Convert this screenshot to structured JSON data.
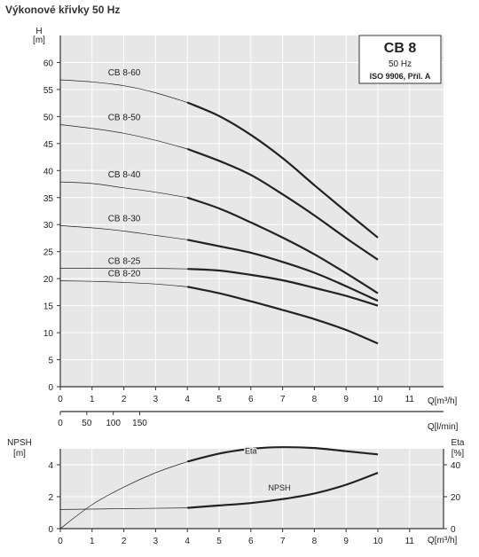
{
  "page_title": "Výkonové křivky 50 Hz",
  "colors": {
    "background": "#ffffff",
    "panel": "#e7e7e7",
    "grid": "#ffffff",
    "curve": "#222222",
    "axis": "#333333",
    "legend_box": "#ffffff"
  },
  "legend_box": {
    "title": "CB 8",
    "line2": "50 Hz",
    "line3": "ISO 9906, Příl. A"
  },
  "chart_data": [
    {
      "type": "line",
      "ylabel": "H",
      "yunit": "[m]",
      "xlabel": "Q[m³/h]",
      "xlim": [
        0,
        12
      ],
      "ylim": [
        0,
        65
      ],
      "xticks": [
        0,
        1,
        2,
        3,
        4,
        5,
        6,
        7,
        8,
        9,
        10,
        11
      ],
      "yticks": [
        0,
        5,
        10,
        15,
        20,
        25,
        30,
        35,
        40,
        45,
        50,
        55,
        60
      ],
      "secondary_x": {
        "label": "Q[l/min]",
        "ticks": [
          0,
          50,
          100,
          150
        ],
        "factor": 60
      },
      "series": [
        {
          "name": "CB 8-60",
          "thin": [
            [
              0,
              56.8
            ],
            [
              1,
              56.4
            ],
            [
              2,
              55.7
            ],
            [
              3,
              54.4
            ],
            [
              4,
              52.6
            ]
          ],
          "thick": [
            [
              4,
              52.6
            ],
            [
              5,
              50.1
            ],
            [
              6,
              46.6
            ],
            [
              7,
              42.3
            ],
            [
              8,
              37.3
            ],
            [
              9,
              32.4
            ],
            [
              10,
              27.6
            ]
          ]
        },
        {
          "name": "CB 8-50",
          "thin": [
            [
              0,
              48.5
            ],
            [
              1,
              47.8
            ],
            [
              2,
              46.9
            ],
            [
              3,
              45.6
            ],
            [
              4,
              44.0
            ]
          ],
          "thick": [
            [
              4,
              44.0
            ],
            [
              5,
              41.8
            ],
            [
              6,
              39.2
            ],
            [
              7,
              35.6
            ],
            [
              8,
              31.7
            ],
            [
              9,
              27.5
            ],
            [
              10,
              23.5
            ]
          ]
        },
        {
          "name": "CB 8-40",
          "thin": [
            [
              0,
              37.9
            ],
            [
              1,
              37.6
            ],
            [
              2,
              36.8
            ],
            [
              3,
              36.0
            ],
            [
              4,
              35.0
            ]
          ],
          "thick": [
            [
              4,
              35.0
            ],
            [
              5,
              33.0
            ],
            [
              6,
              30.4
            ],
            [
              7,
              27.6
            ],
            [
              8,
              24.5
            ],
            [
              9,
              21.0
            ],
            [
              10,
              17.3
            ]
          ]
        },
        {
          "name": "CB 8-30",
          "thin": [
            [
              0,
              29.8
            ],
            [
              1,
              29.4
            ],
            [
              2,
              28.8
            ],
            [
              3,
              28.0
            ],
            [
              4,
              27.2
            ]
          ],
          "thick": [
            [
              4,
              27.2
            ],
            [
              5,
              26.0
            ],
            [
              6,
              24.8
            ],
            [
              7,
              23.1
            ],
            [
              8,
              21.1
            ],
            [
              9,
              18.6
            ],
            [
              10,
              15.9
            ]
          ]
        },
        {
          "name": "CB 8-25",
          "thin": [
            [
              0,
              21.9
            ],
            [
              1,
              21.9
            ],
            [
              2,
              21.9
            ],
            [
              3,
              21.9
            ],
            [
              4,
              21.8
            ]
          ],
          "thick": [
            [
              4,
              21.8
            ],
            [
              5,
              21.5
            ],
            [
              6,
              20.7
            ],
            [
              7,
              19.7
            ],
            [
              8,
              18.3
            ],
            [
              9,
              16.8
            ],
            [
              10,
              15.0
            ]
          ]
        },
        {
          "name": "CB 8-20",
          "thin": [
            [
              0,
              19.6
            ],
            [
              1,
              19.5
            ],
            [
              2,
              19.3
            ],
            [
              3,
              19.0
            ],
            [
              4,
              18.5
            ]
          ],
          "thick": [
            [
              4,
              18.5
            ],
            [
              5,
              17.3
            ],
            [
              6,
              15.8
            ],
            [
              7,
              14.2
            ],
            [
              8,
              12.5
            ],
            [
              9,
              10.5
            ],
            [
              10,
              8.0
            ]
          ]
        }
      ]
    },
    {
      "type": "line",
      "ylabel": "NPSH",
      "yunit": "[m]",
      "y2label": "Eta",
      "y2unit": "[%]",
      "xlabel": "Q[m³/h]",
      "xlim": [
        0,
        12
      ],
      "ylim": [
        0,
        5
      ],
      "y2lim": [
        0,
        50
      ],
      "xticks": [
        0,
        1,
        2,
        3,
        4,
        5,
        6,
        7,
        8,
        9,
        10,
        11
      ],
      "yticks": [
        0,
        2,
        4
      ],
      "y2ticks": [
        0,
        20,
        40
      ],
      "series": [
        {
          "name": "Eta",
          "axis": "right",
          "thin": [
            [
              0,
              0
            ],
            [
              1,
              15
            ],
            [
              2,
              26
            ],
            [
              3,
              35
            ],
            [
              4,
              42
            ]
          ],
          "thick": [
            [
              4,
              42
            ],
            [
              5,
              47
            ],
            [
              6,
              50
            ],
            [
              7,
              51
            ],
            [
              8,
              50.5
            ],
            [
              9,
              48.5
            ],
            [
              10,
              46.5
            ]
          ]
        },
        {
          "name": "NPSH",
          "axis": "left",
          "thin": [
            [
              0,
              1.2
            ],
            [
              2,
              1.25
            ],
            [
              4,
              1.3
            ]
          ],
          "thick": [
            [
              4,
              1.3
            ],
            [
              5,
              1.45
            ],
            [
              6,
              1.6
            ],
            [
              7,
              1.85
            ],
            [
              8,
              2.2
            ],
            [
              9,
              2.75
            ],
            [
              10,
              3.5
            ]
          ]
        }
      ]
    }
  ]
}
